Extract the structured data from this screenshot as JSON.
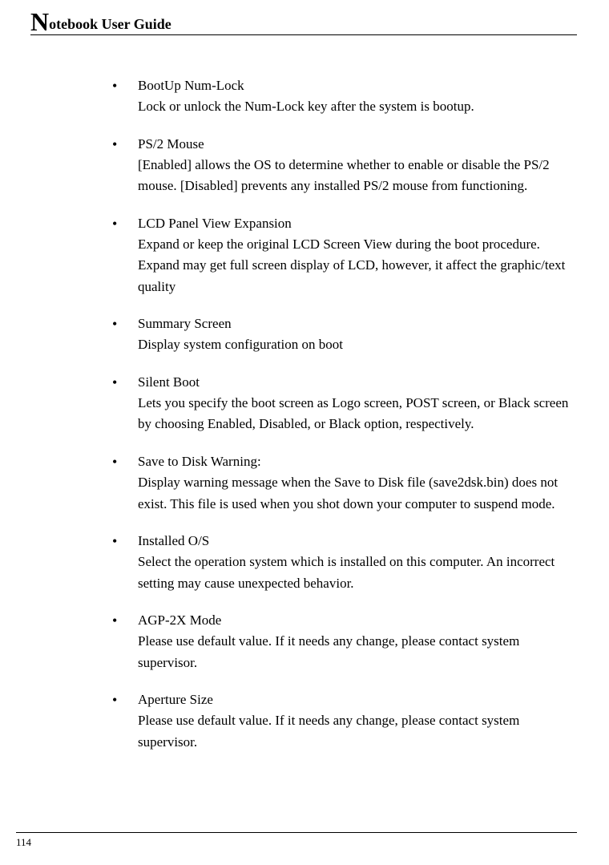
{
  "header": {
    "dropcap": "N",
    "rest": "otebook User Guide"
  },
  "items": [
    {
      "title": "BootUp Num-Lock",
      "desc": "Lock or unlock the Num-Lock key after the system is bootup."
    },
    {
      "title": "PS/2 Mouse",
      "desc": "[Enabled] allows the OS to determine whether to enable or disable the PS/2 mouse. [Disabled] prevents any installed PS/2 mouse from functioning."
    },
    {
      "title": "LCD Panel View Expansion",
      "desc": "Expand or keep the original LCD Screen View during the boot procedure. Expand may get full screen display of LCD, however, it affect the graphic/text quality"
    },
    {
      "title": "Summary Screen",
      "desc": "Display system configuration on boot"
    },
    {
      "title": "Silent Boot",
      "desc": "Lets you specify the boot screen as Logo screen, POST screen, or Black screen by choosing Enabled, Disabled, or Black option, respectively."
    },
    {
      "title": "Save to Disk Warning:",
      "desc": "Display warning message when the Save to Disk file (save2dsk.bin) does not exist. This file is used when you shot down your computer to suspend mode."
    },
    {
      "title": "Installed O/S",
      "desc": "Select the operation system which is installed on this computer. An incorrect setting may cause unexpected behavior."
    },
    {
      "title": "AGP-2X Mode",
      "desc": "Please use default value. If it needs any change, please contact system supervisor."
    },
    {
      "title": "Aperture Size",
      "desc": "Please use default value. If it needs any change, please contact system supervisor."
    }
  ],
  "footer": {
    "page_number": "114"
  },
  "style": {
    "body_fontsize": 17,
    "header_fontsize": 18,
    "dropcap_fontsize": 32,
    "text_color": "#000000",
    "background_color": "#ffffff",
    "line_height": 1.55
  }
}
